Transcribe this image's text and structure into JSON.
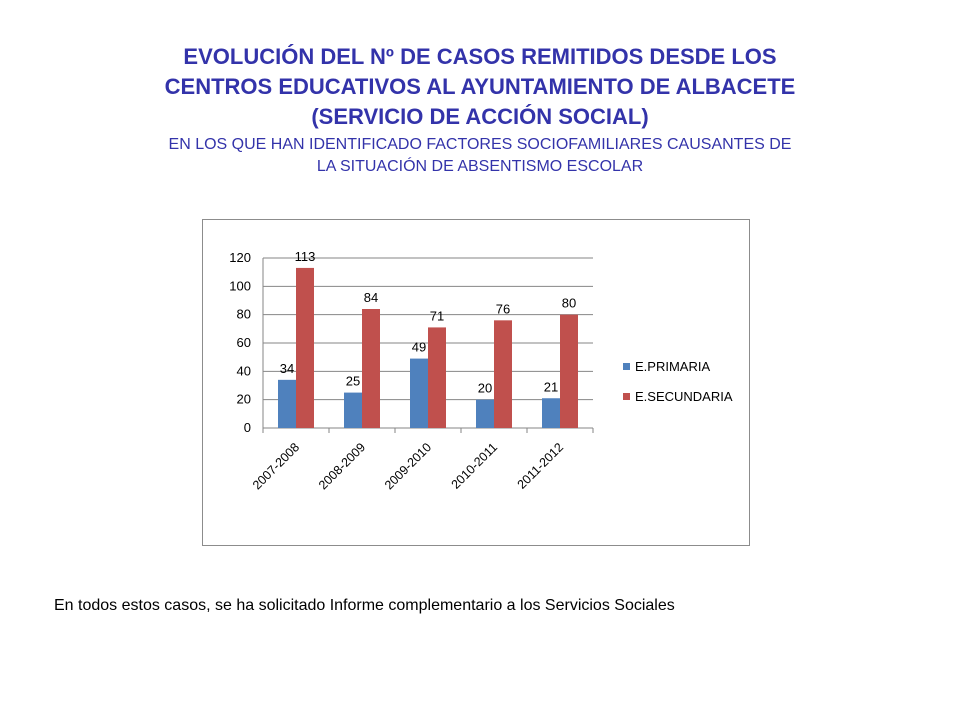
{
  "slide": {
    "title": "EVOLUCIÓN DEL Nº DE CASOS REMITIDOS DESDE LOS\nCENTROS EDUCATIVOS AL AYUNTAMIENTO  DE ALBACETE\n(SERVICIO DE ACCIÓN SOCIAL)",
    "subtitle": "EN LOS QUE HAN IDENTIFICADO FACTORES SOCIOFAMILIARES CAUSANTES DE\nLA SITUACIÓN DE ABSENTISMO ESCOLAR",
    "footnote": "En todos estos casos, se ha solicitado Informe complementario a los Servicios Sociales"
  },
  "chart_data": {
    "type": "bar",
    "categories": [
      "2007-2008",
      "2008-2009",
      "2009-2010",
      "2010-2011",
      "2011-2012"
    ],
    "series": [
      {
        "name": "E.PRIMARIA",
        "values": [
          34,
          25,
          49,
          20,
          21
        ],
        "color": "#4f81bd"
      },
      {
        "name": "E.SECUNDARIA",
        "values": [
          113,
          84,
          71,
          76,
          80
        ],
        "color": "#c0504d"
      }
    ],
    "yticks": [
      0,
      20,
      40,
      60,
      80,
      100,
      120
    ],
    "ylim": [
      0,
      120
    ],
    "data_labels": true,
    "grid": true,
    "legend": "right"
  }
}
